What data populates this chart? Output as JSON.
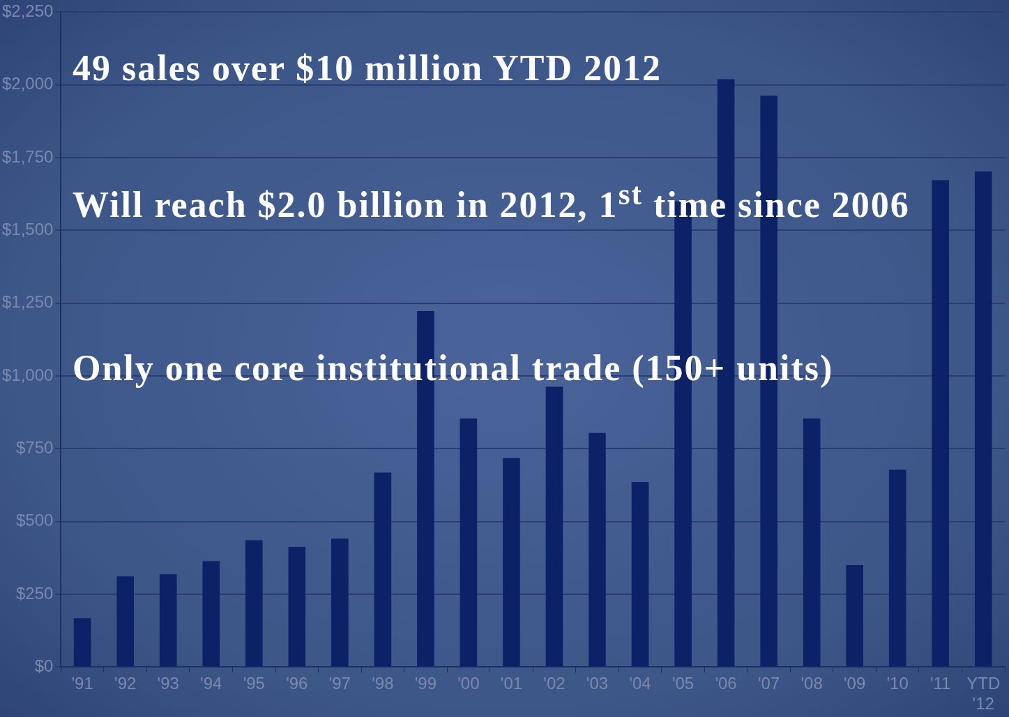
{
  "chart_data": {
    "type": "bar",
    "categories": [
      "'91",
      "'92",
      "'93",
      "'94",
      "'95",
      "'96",
      "'97",
      "'98",
      "'99",
      "'00",
      "'01",
      "'02",
      "'03",
      "'04",
      "'05",
      "'06",
      "'07",
      "'08",
      "'09",
      "'10",
      "'11",
      "YTD '12"
    ],
    "values": [
      168,
      312,
      319,
      364,
      436,
      413,
      441,
      668,
      1223,
      854,
      718,
      963,
      804,
      636,
      1600,
      2020,
      1963,
      854,
      351,
      678,
      1673,
      1703
    ],
    "color": "#0d2266",
    "ylim": [
      0,
      2250
    ],
    "yticks": [
      {
        "value": 0,
        "label": "$0"
      },
      {
        "value": 250,
        "label": "$250"
      },
      {
        "value": 500,
        "label": "$500"
      },
      {
        "value": 750,
        "label": "$750"
      },
      {
        "value": 1000,
        "label": "$1,000"
      },
      {
        "value": 1250,
        "label": "$1,250"
      },
      {
        "value": 1500,
        "label": "$1,500"
      },
      {
        "value": 1750,
        "label": "$1,750"
      },
      {
        "value": 2000,
        "label": "$2,000"
      },
      {
        "value": 2250,
        "label": "$2,250"
      }
    ],
    "grid": "y",
    "annotations": [
      "49 sales over $10 million YTD 2012",
      "Will reach $2.0 billion in 2012, 1$^{st}$ time since 2006",
      "Only one core institutional trade (150+ units)"
    ]
  }
}
